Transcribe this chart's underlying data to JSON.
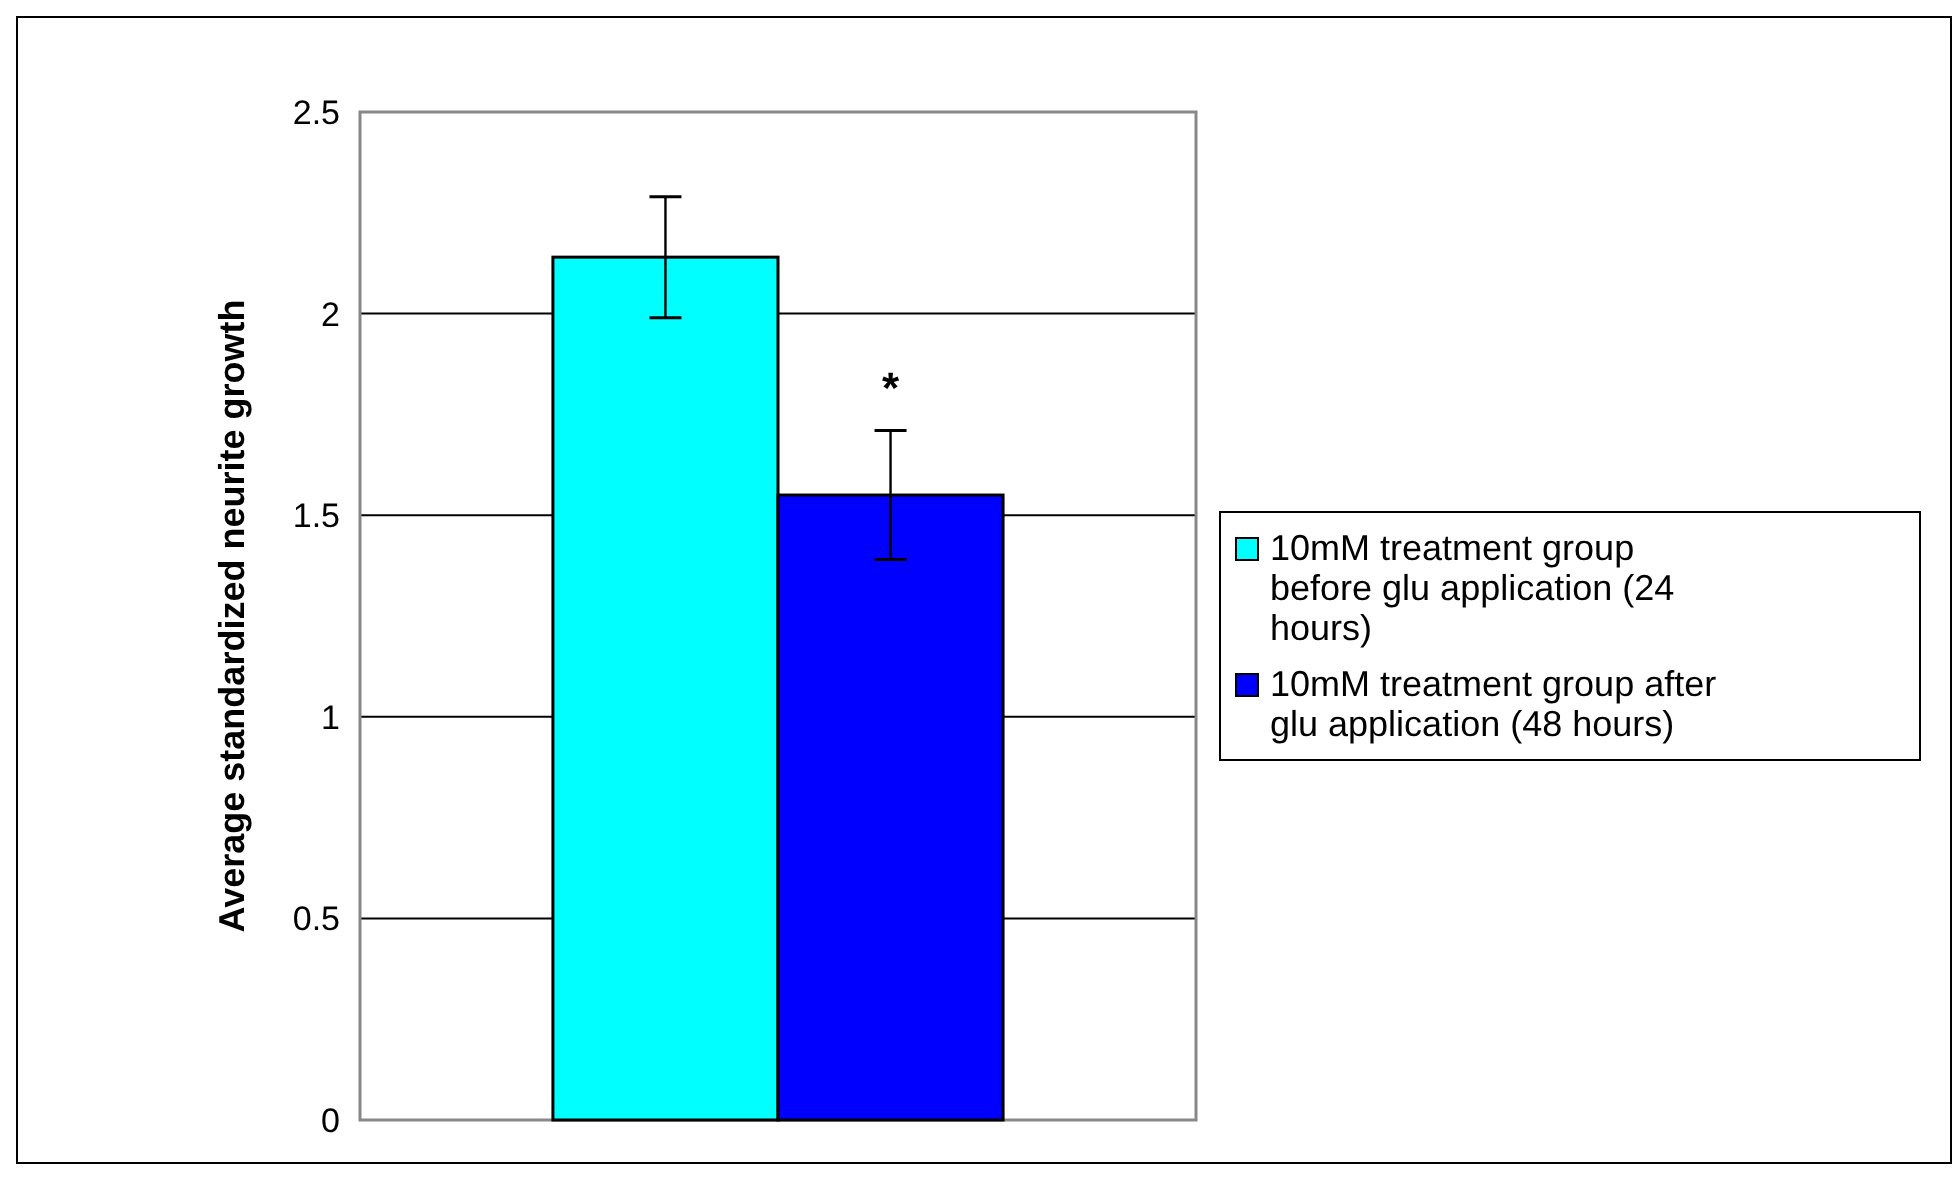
{
  "chart_data": {
    "type": "bar",
    "ylabel": "Average standardized neurite growth",
    "categories": [
      null
    ],
    "series": [
      {
        "name": "10mM treatment group before glu application (24 hours)",
        "color": "#00ffff",
        "values": [
          2.14
        ],
        "errors": [
          0.15
        ]
      },
      {
        "name": "10mM treatment group after glu application (48 hours)",
        "color": "#0000ff",
        "values": [
          1.55
        ],
        "errors": [
          0.16
        ]
      }
    ],
    "ylim": [
      0,
      2.5
    ],
    "yticks": [
      0,
      0.5,
      1,
      1.5,
      2,
      2.5
    ],
    "grid": "y",
    "legend": "right",
    "annotations": [
      "*"
    ]
  }
}
